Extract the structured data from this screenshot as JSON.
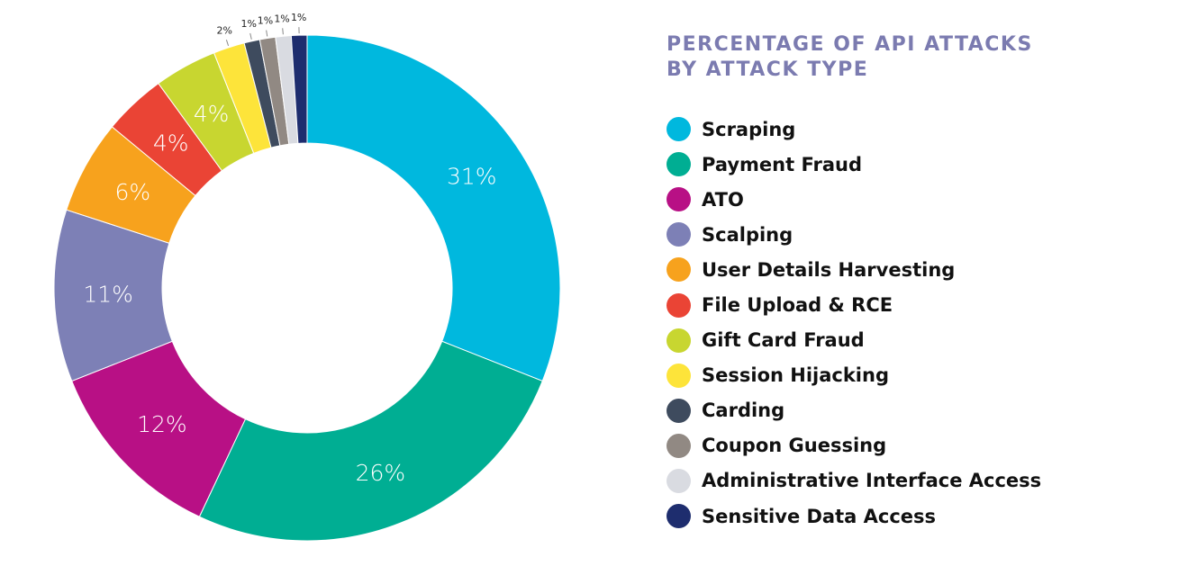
{
  "chart_data": {
    "type": "pie",
    "title_lines": [
      "PERCENTAGE OF API ATTACKS",
      "BY ATTACK TYPE"
    ],
    "slices": [
      {
        "name": "Scraping",
        "value": 31,
        "label": "31%",
        "color": "#00b8de"
      },
      {
        "name": "Payment Fraud",
        "value": 26,
        "label": "26%",
        "color": "#00ae93"
      },
      {
        "name": "ATO",
        "value": 12,
        "label": "12%",
        "color": "#b81085"
      },
      {
        "name": "Scalping",
        "value": 11,
        "label": "11%",
        "color": "#7d80b6"
      },
      {
        "name": "User Details Harvesting",
        "value": 6,
        "label": "6%",
        "color": "#f7a21d"
      },
      {
        "name": "File Upload & RCE",
        "value": 4,
        "label": "4%",
        "color": "#ea4435"
      },
      {
        "name": "Gift Card Fraud",
        "value": 4,
        "label": "4%",
        "color": "#c8d630"
      },
      {
        "name": "Session Hijacking",
        "value": 2,
        "label": "2%",
        "color": "#fde43a"
      },
      {
        "name": "Carding",
        "value": 1,
        "label": "1%",
        "color": "#3e4b5e"
      },
      {
        "name": "Coupon Guessing",
        "value": 1,
        "label": "1%",
        "color": "#918983"
      },
      {
        "name": "Administrative Interface Access",
        "value": 1,
        "label": "1%",
        "color": "#d9dbe1"
      },
      {
        "name": "Sensitive Data Access",
        "value": 1,
        "label": "1%",
        "color": "#1e2d6e"
      }
    ],
    "legend_position": "right"
  }
}
